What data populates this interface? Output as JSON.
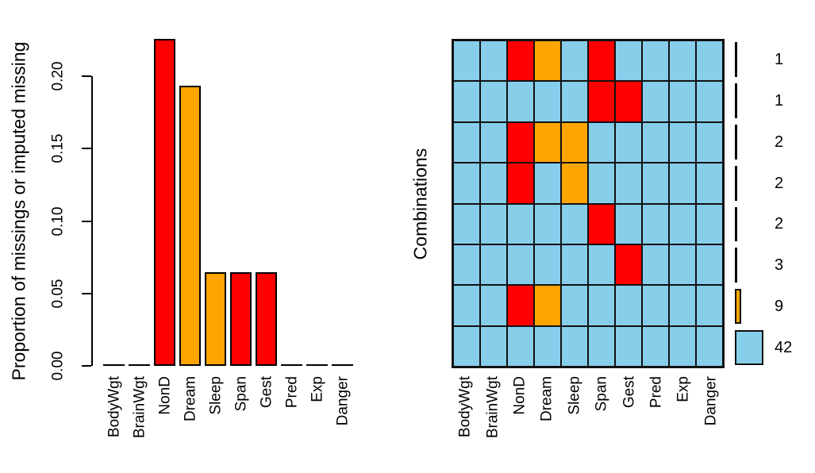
{
  "figure": {
    "background": "#ffffff",
    "colors": {
      "observed": "#87CEEB",
      "missing": "#FF0000",
      "imputed": "#FFA500",
      "axis": "#000000",
      "text": "#000000",
      "grid_border": "#111111",
      "legend_black": "#000000"
    }
  },
  "chart_data": [
    {
      "type": "bar",
      "title": "",
      "ylabel": "Proportion of missings or imputed missing",
      "xlabel": "",
      "yticks": [
        "0.00",
        "0.05",
        "0.10",
        "0.15",
        "0.20"
      ],
      "ylim": [
        0,
        0.2258
      ],
      "grid": false,
      "bars": [
        {
          "category": "BodyWgt",
          "value": 0,
          "color": null
        },
        {
          "category": "BrainWgt",
          "value": 0,
          "color": null
        },
        {
          "category": "NonD",
          "value": 0.2258,
          "color": "missing"
        },
        {
          "category": "Dream",
          "value": 0.1935,
          "color": "imputed"
        },
        {
          "category": "Sleep",
          "value": 0.0645,
          "color": "imputed"
        },
        {
          "category": "Span",
          "value": 0.0645,
          "color": "missing"
        },
        {
          "category": "Gest",
          "value": 0.0645,
          "color": "missing"
        },
        {
          "category": "Pred",
          "value": 0,
          "color": null
        },
        {
          "category": "Exp",
          "value": 0,
          "color": null
        },
        {
          "category": "Danger",
          "value": 0,
          "color": null
        }
      ]
    },
    {
      "type": "heatmap",
      "title": "",
      "ylabel": "Combinations",
      "xlabel": "",
      "legend_position": "right",
      "cell_legend": {
        "o": "observed",
        "m": "missing",
        "i": "imputed"
      },
      "categories": [
        "BodyWgt",
        "BrainWgt",
        "NonD",
        "Dream",
        "Sleep",
        "Span",
        "Gest",
        "Pred",
        "Exp",
        "Danger"
      ],
      "rows": [
        {
          "pattern": [
            "o",
            "o",
            "m",
            "i",
            "o",
            "m",
            "o",
            "o",
            "o",
            "o"
          ],
          "count": 1,
          "bar_color": "black"
        },
        {
          "pattern": [
            "o",
            "o",
            "o",
            "o",
            "o",
            "m",
            "m",
            "o",
            "o",
            "o"
          ],
          "count": 1,
          "bar_color": "black"
        },
        {
          "pattern": [
            "o",
            "o",
            "m",
            "i",
            "i",
            "o",
            "o",
            "o",
            "o",
            "o"
          ],
          "count": 2,
          "bar_color": "black"
        },
        {
          "pattern": [
            "o",
            "o",
            "m",
            "o",
            "i",
            "o",
            "o",
            "o",
            "o",
            "o"
          ],
          "count": 2,
          "bar_color": "black"
        },
        {
          "pattern": [
            "o",
            "o",
            "o",
            "o",
            "o",
            "m",
            "o",
            "o",
            "o",
            "o"
          ],
          "count": 2,
          "bar_color": "black"
        },
        {
          "pattern": [
            "o",
            "o",
            "o",
            "o",
            "o",
            "o",
            "m",
            "o",
            "o",
            "o"
          ],
          "count": 3,
          "bar_color": "black"
        },
        {
          "pattern": [
            "o",
            "o",
            "m",
            "i",
            "o",
            "o",
            "o",
            "o",
            "o",
            "o"
          ],
          "count": 9,
          "bar_color": "imputed"
        },
        {
          "pattern": [
            "o",
            "o",
            "o",
            "o",
            "o",
            "o",
            "o",
            "o",
            "o",
            "o"
          ],
          "count": 42,
          "bar_color": "observed"
        }
      ]
    }
  ]
}
